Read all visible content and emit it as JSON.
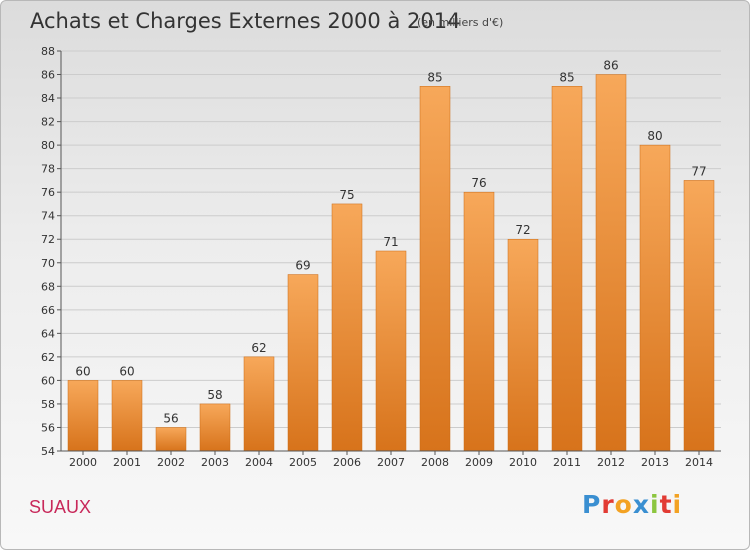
{
  "title": "Achats et Charges Externes 2000 à 2014",
  "unit": "(en milliers d'€)",
  "place": "SUAUX",
  "logo": {
    "text": "Proxiti",
    "letters": [
      {
        "ch": "P",
        "color": "#3a8fd1"
      },
      {
        "ch": "r",
        "color": "#e23b34"
      },
      {
        "ch": "o",
        "color": "#f3a223"
      },
      {
        "ch": "x",
        "color": "#3a8fd1"
      },
      {
        "ch": "i",
        "color": "#8cc63f"
      },
      {
        "ch": "t",
        "color": "#e23b34"
      },
      {
        "ch": "i",
        "color": "#f3a223"
      }
    ]
  },
  "colors": {
    "bar_top": "#f7a85a",
    "bar_bottom": "#d7731b",
    "bar_edge": "#c96a15",
    "grid": "#cccccc",
    "axis": "#555555",
    "text": "#333333"
  },
  "chart_data": {
    "type": "bar",
    "title": "Achats et Charges Externes 2000 à 2014",
    "subtitle": "(en milliers d'€)",
    "xlabel": "",
    "ylabel": "",
    "categories": [
      "2000",
      "2001",
      "2002",
      "2003",
      "2004",
      "2005",
      "2006",
      "2007",
      "2008",
      "2009",
      "2010",
      "2011",
      "2012",
      "2013",
      "2014"
    ],
    "values": [
      60,
      60,
      56,
      58,
      62,
      69,
      75,
      71,
      85,
      76,
      72,
      85,
      86,
      80,
      77
    ],
    "ylim": [
      54,
      88
    ],
    "yticks": [
      54,
      56,
      58,
      60,
      62,
      64,
      66,
      68,
      70,
      72,
      74,
      76,
      78,
      80,
      82,
      84,
      86,
      88
    ],
    "grid": true,
    "legend": "none"
  }
}
